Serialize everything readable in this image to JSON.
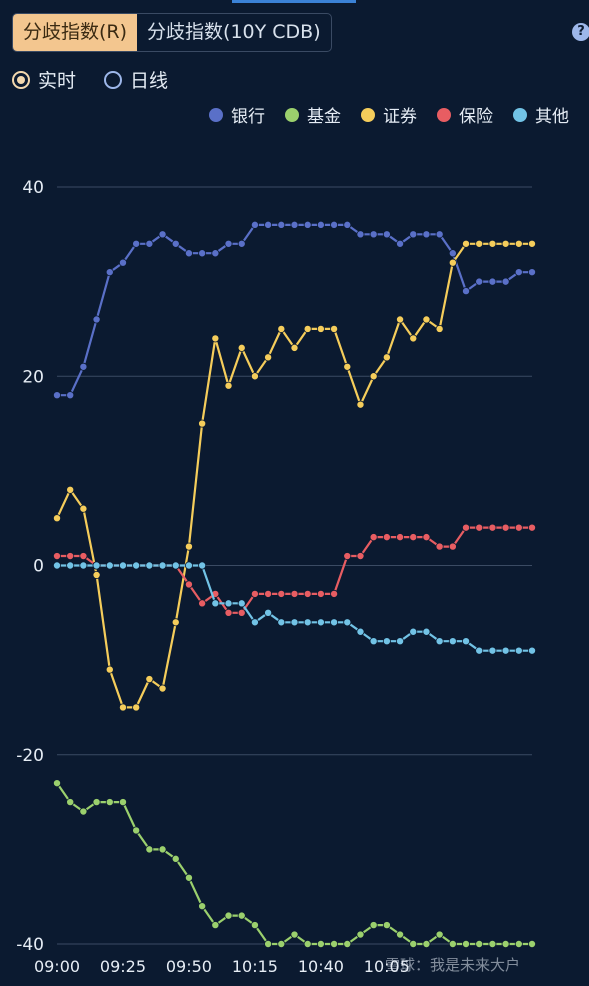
{
  "tabs": [
    {
      "label": "分歧指数(R)",
      "active": true
    },
    {
      "label": "分歧指数(10Y CDB)",
      "active": false
    }
  ],
  "help_label": "?",
  "radio_options": [
    {
      "label": "实时",
      "checked": true
    },
    {
      "label": "日线",
      "checked": false
    }
  ],
  "watermark": "雪球：我是未来大户",
  "chart_data": {
    "type": "line",
    "ylim": [
      -40,
      40
    ],
    "yticks": [
      40,
      20,
      0,
      -20,
      -40
    ],
    "x_tick_labels": [
      "09:00",
      "09:25",
      "09:50",
      "10:15",
      "10:40",
      "10:05"
    ],
    "x_tick_indices": [
      0,
      5,
      10,
      15,
      20,
      25
    ],
    "grid": true,
    "legend_position": "top-right",
    "series": [
      {
        "name": "银行",
        "color": "#5a70c8",
        "values": [
          18,
          18,
          21,
          26,
          31,
          32,
          34,
          34,
          35,
          34,
          33,
          33,
          33,
          34,
          34,
          36,
          36,
          36,
          36,
          36,
          36,
          36,
          36,
          35,
          35,
          35,
          34,
          35,
          35,
          35,
          33,
          29,
          30,
          30,
          30,
          31,
          31
        ]
      },
      {
        "name": "基金",
        "color": "#9bd06d",
        "values": [
          -23,
          -25,
          -26,
          -25,
          -25,
          -25,
          -28,
          -30,
          -30,
          -31,
          -33,
          -36,
          -38,
          -37,
          -37,
          -38,
          -40,
          -40,
          -39,
          -40,
          -40,
          -40,
          -40,
          -39,
          -38,
          -38,
          -39,
          -40,
          -40,
          -39,
          -40,
          -40,
          -40,
          -40,
          -40,
          -40,
          -40
        ]
      },
      {
        "name": "证券",
        "color": "#f5cd5b",
        "values": [
          5,
          8,
          6,
          -1,
          -11,
          -15,
          -15,
          -12,
          -13,
          -6,
          2,
          15,
          24,
          19,
          23,
          20,
          22,
          25,
          23,
          25,
          25,
          25,
          21,
          17,
          20,
          22,
          26,
          24,
          26,
          25,
          32,
          34,
          34,
          34,
          34,
          34,
          34
        ]
      },
      {
        "name": "保险",
        "color": "#e85d62",
        "values": [
          1,
          1,
          1,
          0,
          0,
          0,
          0,
          0,
          0,
          0,
          -2,
          -4,
          -3,
          -5,
          -5,
          -3,
          -3,
          -3,
          -3,
          -3,
          -3,
          -3,
          1,
          1,
          3,
          3,
          3,
          3,
          3,
          2,
          2,
          4,
          4,
          4,
          4,
          4,
          4
        ]
      },
      {
        "name": "其他",
        "color": "#72c3e6",
        "values": [
          0,
          0,
          0,
          0,
          0,
          0,
          0,
          0,
          0,
          0,
          0,
          0,
          -4,
          -4,
          -4,
          -6,
          -5,
          -6,
          -6,
          -6,
          -6,
          -6,
          -6,
          -7,
          -8,
          -8,
          -8,
          -7,
          -7,
          -8,
          -8,
          -8,
          -9,
          -9,
          -9,
          -9,
          -9
        ]
      }
    ]
  }
}
